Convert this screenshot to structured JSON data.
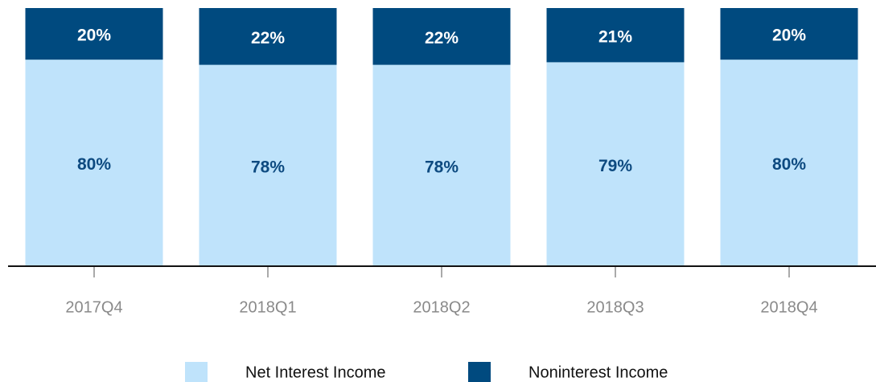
{
  "chart_data": {
    "type": "stacked_bar",
    "categories": [
      "2017Q4",
      "2018Q1",
      "2018Q2",
      "2018Q3",
      "2018Q4"
    ],
    "series": [
      {
        "name": "Net Interest Income",
        "color": "#bfe3fb",
        "label_color": "#0d4a80",
        "values": [
          80,
          78,
          78,
          79,
          80
        ],
        "value_labels": [
          "80%",
          "78%",
          "78%",
          "79%",
          "80%"
        ]
      },
      {
        "name": "Noninterest Income",
        "color": "#004a7f",
        "label_color": "#ffffff",
        "values": [
          20,
          22,
          22,
          21,
          20
        ],
        "value_labels": [
          "20%",
          "22%",
          "22%",
          "21%",
          "20%"
        ]
      }
    ],
    "ylim": [
      0,
      100
    ]
  }
}
